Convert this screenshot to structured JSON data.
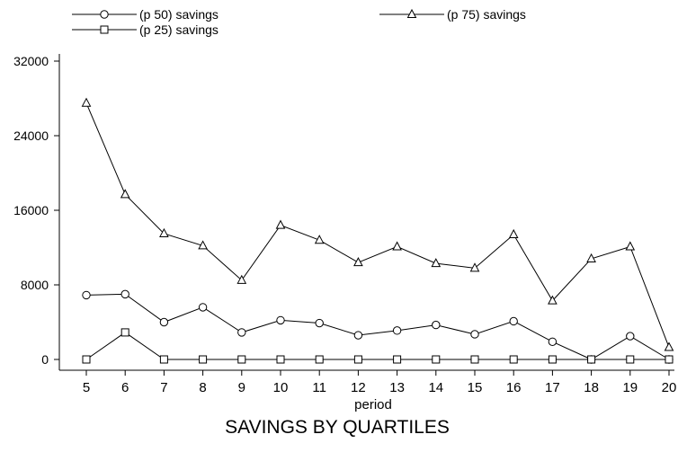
{
  "chart_data": {
    "type": "line",
    "title": "SAVINGS BY QUARTILES",
    "xlabel": "period",
    "ylabel": "",
    "x": [
      5,
      6,
      7,
      8,
      9,
      10,
      11,
      12,
      13,
      14,
      15,
      16,
      17,
      18,
      19,
      20
    ],
    "xlim": [
      5,
      20
    ],
    "ylim": [
      0,
      32000
    ],
    "yticks": [
      0,
      8000,
      16000,
      24000,
      32000
    ],
    "ytick_labels": [
      "0",
      "8000",
      "16000",
      "24000",
      "32000"
    ],
    "xtick_labels": [
      "5",
      "6",
      "7",
      "8",
      "9",
      "10",
      "11",
      "12",
      "13",
      "14",
      "15",
      "16",
      "17",
      "18",
      "19",
      "20"
    ],
    "grid": false,
    "legend_position": "top",
    "series": [
      {
        "name": "(p 50) savings",
        "marker": "circle",
        "values": [
          6900,
          7000,
          4000,
          5600,
          2900,
          4200,
          3900,
          2600,
          3100,
          3700,
          2700,
          4100,
          1900,
          0,
          2500,
          0
        ]
      },
      {
        "name": "(p 75) savings",
        "marker": "triangle",
        "values": [
          27500,
          17700,
          13500,
          12200,
          8500,
          14400,
          12800,
          10400,
          12100,
          10300,
          9800,
          13400,
          6300,
          10800,
          12100,
          1300
        ]
      },
      {
        "name": "(p 25) savings",
        "marker": "square",
        "values": [
          0,
          2900,
          0,
          0,
          0,
          0,
          0,
          0,
          0,
          0,
          0,
          0,
          0,
          0,
          0,
          0
        ]
      }
    ]
  }
}
